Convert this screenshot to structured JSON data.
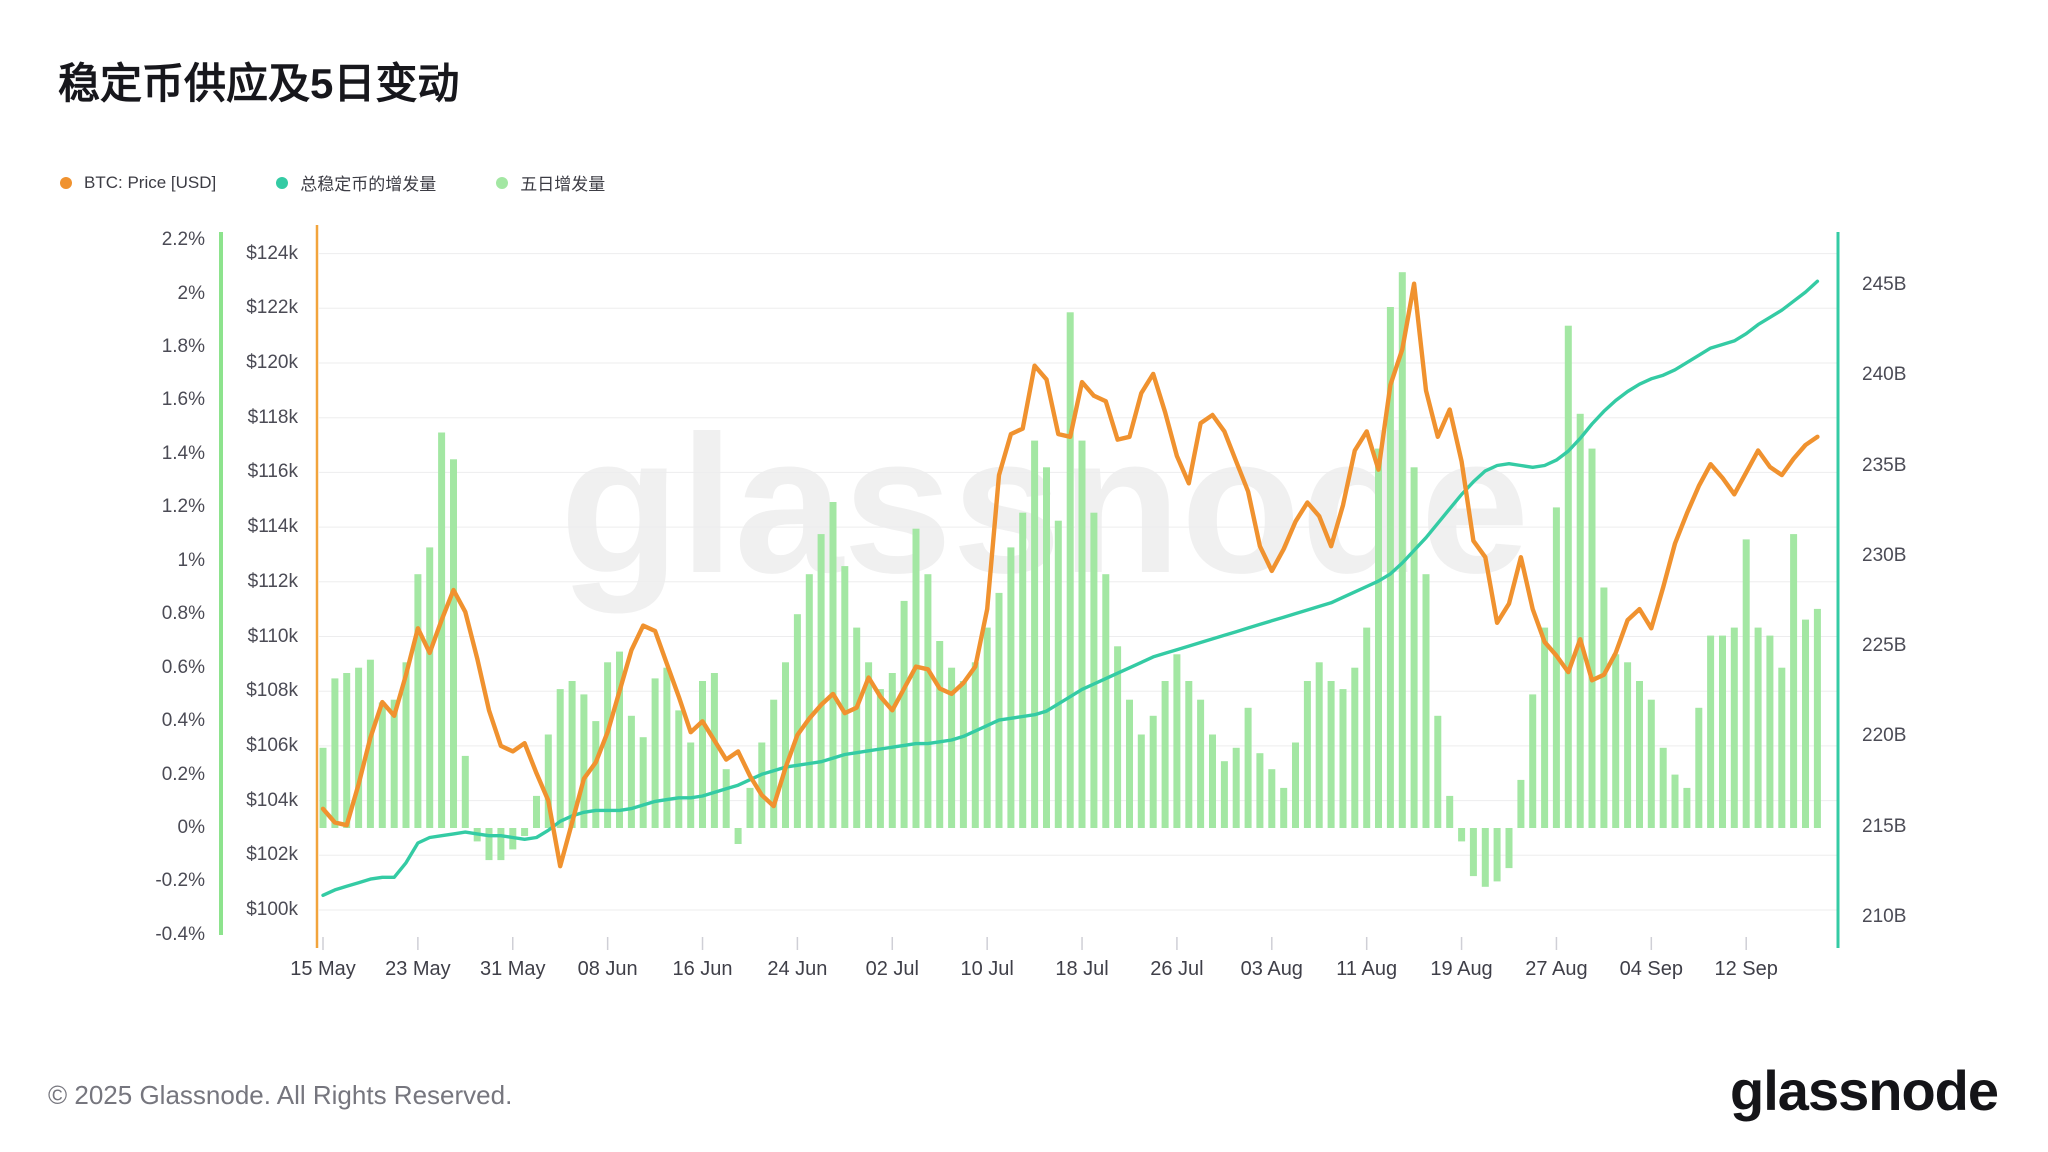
{
  "header": {
    "title": "稳定币供应及5日变动"
  },
  "legend": [
    {
      "label": "BTC: Price [USD]",
      "color": "#F0922F"
    },
    {
      "label": "总稳定币的增发量",
      "color": "#34CBA4"
    },
    {
      "label": "五日增发量",
      "color": "#A3E7A3"
    }
  ],
  "watermark": "glassnode",
  "footer": {
    "copyright": "© 2025 Glassnode. All Rights Reserved.",
    "logo": "glassnode"
  },
  "chart_data": {
    "type": "mixed",
    "title": "稳定币供应及5日变动",
    "x": {
      "start_label": "15 May",
      "tick_interval_days": 8,
      "tick_labels": [
        "15 May",
        "23 May",
        "31 May",
        "08 Jun",
        "16 Jun",
        "24 Jun",
        "02 Jul",
        "10 Jul",
        "18 Jul",
        "26 Jul",
        "03 Aug",
        "11 Aug",
        "19 Aug",
        "27 Aug",
        "04 Sep",
        "12 Sep"
      ],
      "days_total": 127
    },
    "axes": {
      "percent": {
        "side": "outer-left",
        "labels": [
          "2.2%",
          "2%",
          "1.8%",
          "1.6%",
          "1.4%",
          "1.2%",
          "1%",
          "0.8%",
          "0.6%",
          "0.4%",
          "0.2%",
          "0%",
          "-0.2%",
          "-0.4%"
        ],
        "values": [
          2.2,
          2.0,
          1.8,
          1.6,
          1.4,
          1.2,
          1.0,
          0.8,
          0.6,
          0.4,
          0.2,
          0.0,
          -0.2,
          -0.4
        ],
        "min": -0.4,
        "max": 2.2,
        "axis_line_color": "#8DE38D"
      },
      "price": {
        "side": "inner-left",
        "labels": [
          "$124k",
          "$122k",
          "$120k",
          "$118k",
          "$116k",
          "$114k",
          "$112k",
          "$110k",
          "$108k",
          "$106k",
          "$104k",
          "$102k",
          "$100k"
        ],
        "values": [
          124,
          122,
          120,
          118,
          116,
          114,
          112,
          110,
          108,
          106,
          104,
          102,
          100
        ],
        "min": 100,
        "max": 124,
        "axis_line_color": "#F2A43C",
        "gridlines": true
      },
      "supply": {
        "side": "right",
        "labels": [
          "245B",
          "240B",
          "235B",
          "230B",
          "225B",
          "220B",
          "215B",
          "210B"
        ],
        "values": [
          245,
          240,
          235,
          230,
          225,
          220,
          215,
          210
        ],
        "min": 210,
        "max": 245,
        "axis_line_color": "#34CBA4"
      }
    },
    "grid": "horizontal only, aligned to $2k price steps",
    "legend_position": "top-left",
    "series": [
      {
        "name": "BTC: Price [USD]",
        "type": "line",
        "axis": "price",
        "color": "#F0922F",
        "values": [
          103.7,
          103.2,
          103.1,
          104.6,
          106.3,
          107.6,
          107.1,
          108.6,
          110.3,
          109.4,
          110.6,
          111.7,
          110.9,
          109.2,
          107.3,
          106.0,
          105.8,
          106.1,
          105.0,
          104.0,
          101.6,
          103.2,
          104.8,
          105.4,
          106.5,
          108.0,
          109.5,
          110.4,
          110.2,
          109.0,
          107.8,
          106.5,
          106.9,
          106.2,
          105.5,
          105.8,
          104.9,
          104.2,
          103.8,
          105.2,
          106.4,
          107.0,
          107.5,
          107.9,
          107.2,
          107.4,
          108.5,
          107.8,
          107.3,
          108.1,
          108.9,
          108.8,
          108.1,
          107.9,
          108.3,
          108.9,
          111.0,
          115.9,
          117.4,
          117.6,
          119.9,
          119.4,
          117.4,
          117.3,
          119.3,
          118.8,
          118.6,
          117.2,
          117.3,
          118.9,
          119.6,
          118.2,
          116.6,
          115.6,
          117.8,
          118.1,
          117.5,
          116.4,
          115.3,
          113.3,
          112.4,
          113.2,
          114.2,
          114.9,
          114.4,
          113.3,
          114.8,
          116.8,
          117.5,
          116.1,
          119.2,
          120.5,
          122.9,
          119.0,
          117.3,
          118.3,
          116.4,
          113.5,
          112.9,
          110.5,
          111.2,
          112.9,
          111.0,
          109.8,
          109.3,
          108.7,
          109.9,
          108.4,
          108.6,
          109.4,
          110.6,
          111.0,
          110.3,
          111.8,
          113.4,
          114.5,
          115.5,
          116.3,
          115.8,
          115.2,
          116.0,
          116.8,
          116.2,
          115.9,
          116.5,
          117.0,
          117.3
        ]
      },
      {
        "name": "总稳定币的增发量",
        "type": "line",
        "axis": "supply",
        "color": "#34CBA4",
        "values": [
          211.2,
          211.5,
          211.7,
          211.9,
          212.1,
          212.2,
          212.2,
          213.0,
          214.1,
          214.4,
          214.5,
          214.6,
          214.7,
          214.6,
          214.5,
          214.5,
          214.4,
          214.3,
          214.4,
          214.8,
          215.3,
          215.6,
          215.8,
          215.9,
          215.9,
          215.9,
          216.0,
          216.2,
          216.4,
          216.5,
          216.6,
          216.6,
          216.7,
          216.9,
          217.1,
          217.3,
          217.6,
          217.9,
          218.1,
          218.3,
          218.4,
          218.5,
          218.6,
          218.8,
          219.0,
          219.1,
          219.2,
          219.3,
          219.4,
          219.5,
          219.6,
          219.6,
          219.7,
          219.8,
          220.0,
          220.3,
          220.6,
          220.9,
          221.0,
          221.1,
          221.2,
          221.4,
          221.8,
          222.2,
          222.6,
          222.9,
          223.2,
          223.5,
          223.8,
          224.1,
          224.4,
          224.6,
          224.8,
          225.0,
          225.2,
          225.4,
          225.6,
          225.8,
          226.0,
          226.2,
          226.4,
          226.6,
          226.8,
          227.0,
          227.2,
          227.4,
          227.7,
          228.0,
          228.3,
          228.6,
          229.0,
          229.6,
          230.3,
          231.0,
          231.8,
          232.6,
          233.4,
          234.1,
          234.7,
          235.0,
          235.1,
          235.0,
          234.9,
          235.0,
          235.3,
          235.8,
          236.5,
          237.3,
          238.0,
          238.6,
          239.1,
          239.5,
          239.8,
          240.0,
          240.3,
          240.7,
          241.1,
          241.5,
          241.7,
          241.9,
          242.3,
          242.8,
          243.2,
          243.6,
          244.1,
          244.6,
          245.2
        ]
      },
      {
        "name": "五日增发量",
        "type": "bar",
        "axis": "percent",
        "color": "#A3E7A3",
        "values": [
          0.3,
          0.56,
          0.58,
          0.6,
          0.63,
          0.47,
          0.48,
          0.62,
          0.95,
          1.05,
          1.48,
          1.38,
          0.27,
          -0.05,
          -0.12,
          -0.12,
          -0.08,
          -0.03,
          0.12,
          0.35,
          0.52,
          0.55,
          0.5,
          0.4,
          0.62,
          0.66,
          0.42,
          0.34,
          0.56,
          0.6,
          0.44,
          0.32,
          0.55,
          0.58,
          0.22,
          -0.06,
          0.15,
          0.32,
          0.48,
          0.62,
          0.8,
          0.95,
          1.1,
          1.22,
          0.98,
          0.75,
          0.62,
          0.52,
          0.58,
          0.85,
          1.12,
          0.95,
          0.7,
          0.6,
          0.55,
          0.62,
          0.75,
          0.88,
          1.05,
          1.18,
          1.45,
          1.35,
          1.15,
          1.93,
          1.45,
          1.18,
          0.95,
          0.68,
          0.48,
          0.35,
          0.42,
          0.55,
          0.65,
          0.55,
          0.48,
          0.35,
          0.25,
          0.3,
          0.45,
          0.28,
          0.22,
          0.15,
          0.32,
          0.55,
          0.62,
          0.55,
          0.52,
          0.6,
          0.75,
          1.42,
          1.95,
          2.08,
          1.35,
          0.95,
          0.42,
          0.12,
          -0.05,
          -0.18,
          -0.22,
          -0.2,
          -0.15,
          0.18,
          0.5,
          0.75,
          1.2,
          1.88,
          1.55,
          1.42,
          0.9,
          0.65,
          0.62,
          0.55,
          0.48,
          0.3,
          0.2,
          0.15,
          0.45,
          0.72,
          0.72,
          0.75,
          1.08,
          0.75,
          0.72,
          0.6,
          1.1,
          0.78,
          0.82
        ]
      }
    ]
  }
}
